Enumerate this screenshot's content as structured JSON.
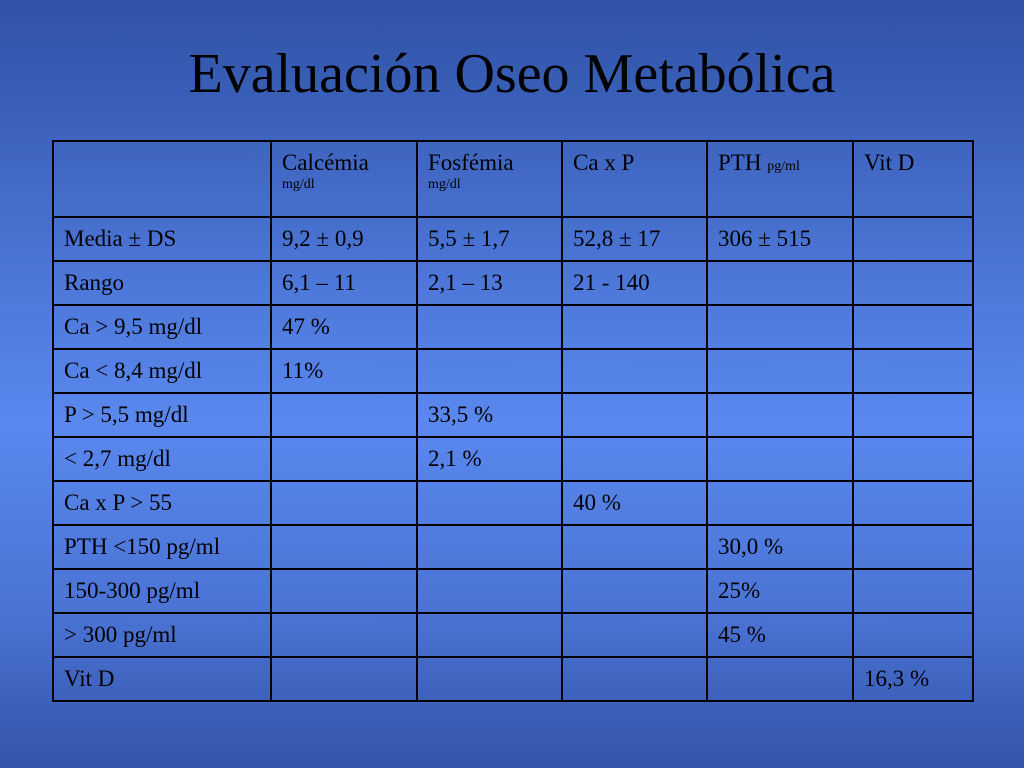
{
  "title": "Evaluación Oseo Metabólica",
  "chart_data": {
    "type": "table",
    "columns": [
      {
        "label": "",
        "unit": ""
      },
      {
        "label": "Calcémia",
        "unit": "mg/dl",
        "unit_position": "below"
      },
      {
        "label": "Fosfémia",
        "unit": "mg/dl",
        "unit_position": "below"
      },
      {
        "label": "Ca x P",
        "unit": ""
      },
      {
        "label": "PTH",
        "unit": "pg/ml",
        "unit_position": "inline"
      },
      {
        "label": "Vit D",
        "unit": ""
      }
    ],
    "rows": [
      [
        "Media ± DS",
        "9,2 ± 0,9",
        "5,5 ± 1,7",
        "52,8 ± 17",
        "306 ± 515",
        ""
      ],
      [
        "Rango",
        "6,1 – 11",
        "2,1 – 13",
        "21 - 140",
        "",
        ""
      ],
      [
        "Ca > 9,5 mg/dl",
        "47 %",
        "",
        "",
        "",
        ""
      ],
      [
        "Ca < 8,4 mg/dl",
        "11%",
        "",
        "",
        "",
        ""
      ],
      [
        "P  > 5,5 mg/dl",
        "",
        "33,5 %",
        "",
        "",
        ""
      ],
      [
        "    < 2,7 mg/dl",
        "",
        "  2,1 %",
        "",
        "",
        ""
      ],
      [
        "Ca x P > 55",
        "",
        "",
        "40 %",
        "",
        ""
      ],
      [
        "PTH <150 pg/ml",
        "",
        "",
        "",
        "30,0 %",
        ""
      ],
      [
        " 150-300 pg/ml",
        "",
        "",
        "",
        "25%",
        ""
      ],
      [
        "> 300 pg/ml",
        "",
        "",
        "",
        "45 %",
        ""
      ],
      [
        "Vit D",
        "",
        "",
        "",
        "",
        "16,3 %"
      ]
    ]
  }
}
